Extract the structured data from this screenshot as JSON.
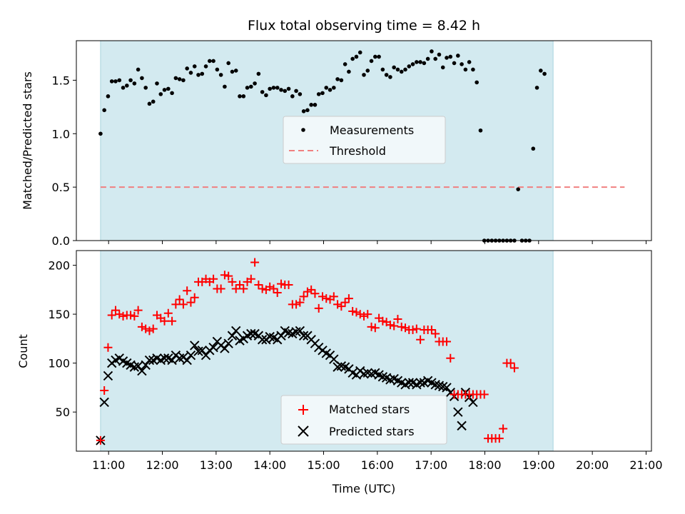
{
  "chart_data": {
    "type": "scatter",
    "title": "Flux total observing time = 8.42 h",
    "xlabel": "Time (UTC)",
    "x_unit": "hours (UTC)",
    "xlim": [
      10.4,
      21.1
    ],
    "x_ticks": [
      {
        "v": 11,
        "label": "11:00"
      },
      {
        "v": 12,
        "label": "12:00"
      },
      {
        "v": 13,
        "label": "13:00"
      },
      {
        "v": 14,
        "label": "14:00"
      },
      {
        "v": 15,
        "label": "15:00"
      },
      {
        "v": 16,
        "label": "16:00"
      },
      {
        "v": 17,
        "label": "17:00"
      },
      {
        "v": 18,
        "label": "18:00"
      },
      {
        "v": 19,
        "label": "19:00"
      },
      {
        "v": 20,
        "label": "20:00"
      },
      {
        "v": 21,
        "label": "21:00"
      }
    ],
    "observing_window": [
      10.85,
      19.27
    ],
    "window_color": "#d3eaf0",
    "top": {
      "ylabel": "Matched/Predicted stars",
      "ylim": [
        0,
        1.87
      ],
      "y_ticks": [
        {
          "v": 0.0,
          "label": "0.0"
        },
        {
          "v": 0.5,
          "label": "0.5"
        },
        {
          "v": 1.0,
          "label": "1.0"
        },
        {
          "v": 1.5,
          "label": "1.5"
        }
      ],
      "threshold": {
        "value": 0.5,
        "x_range": [
          10.85,
          20.6
        ],
        "color": "#f08080"
      },
      "legend": {
        "placement": "center",
        "items": [
          {
            "label": "Measurements",
            "marker": "dot",
            "color": "#000000"
          },
          {
            "label": "Threshold",
            "marker": "dashed-line",
            "color": "#f08080"
          }
        ]
      },
      "measurements": [
        [
          10.85,
          1.0
        ],
        [
          10.92,
          1.22
        ],
        [
          10.99,
          1.35
        ],
        [
          11.06,
          1.49
        ],
        [
          11.13,
          1.49
        ],
        [
          11.2,
          1.5
        ],
        [
          11.27,
          1.43
        ],
        [
          11.34,
          1.45
        ],
        [
          11.41,
          1.5
        ],
        [
          11.48,
          1.47
        ],
        [
          11.55,
          1.6
        ],
        [
          11.62,
          1.52
        ],
        [
          11.69,
          1.43
        ],
        [
          11.76,
          1.28
        ],
        [
          11.83,
          1.3
        ],
        [
          11.9,
          1.47
        ],
        [
          11.97,
          1.37
        ],
        [
          12.04,
          1.41
        ],
        [
          12.11,
          1.42
        ],
        [
          12.18,
          1.38
        ],
        [
          12.25,
          1.52
        ],
        [
          12.32,
          1.51
        ],
        [
          12.39,
          1.5
        ],
        [
          12.46,
          1.61
        ],
        [
          12.53,
          1.57
        ],
        [
          12.6,
          1.63
        ],
        [
          12.67,
          1.55
        ],
        [
          12.74,
          1.56
        ],
        [
          12.81,
          1.63
        ],
        [
          12.88,
          1.68
        ],
        [
          12.95,
          1.68
        ],
        [
          13.02,
          1.6
        ],
        [
          13.09,
          1.55
        ],
        [
          13.16,
          1.44
        ],
        [
          13.23,
          1.66
        ],
        [
          13.3,
          1.58
        ],
        [
          13.37,
          1.59
        ],
        [
          13.44,
          1.35
        ],
        [
          13.51,
          1.35
        ],
        [
          13.58,
          1.43
        ],
        [
          13.65,
          1.44
        ],
        [
          13.72,
          1.47
        ],
        [
          13.79,
          1.56
        ],
        [
          13.86,
          1.39
        ],
        [
          13.93,
          1.36
        ],
        [
          14.0,
          1.42
        ],
        [
          14.07,
          1.43
        ],
        [
          14.14,
          1.43
        ],
        [
          14.21,
          1.41
        ],
        [
          14.28,
          1.4
        ],
        [
          14.35,
          1.42
        ],
        [
          14.42,
          1.35
        ],
        [
          14.49,
          1.4
        ],
        [
          14.56,
          1.37
        ],
        [
          14.63,
          1.21
        ],
        [
          14.7,
          1.22
        ],
        [
          14.77,
          1.27
        ],
        [
          14.84,
          1.27
        ],
        [
          14.91,
          1.37
        ],
        [
          14.98,
          1.38
        ],
        [
          15.05,
          1.43
        ],
        [
          15.12,
          1.41
        ],
        [
          15.19,
          1.43
        ],
        [
          15.26,
          1.51
        ],
        [
          15.33,
          1.5
        ],
        [
          15.4,
          1.65
        ],
        [
          15.47,
          1.58
        ],
        [
          15.54,
          1.7
        ],
        [
          15.61,
          1.72
        ],
        [
          15.68,
          1.76
        ],
        [
          15.75,
          1.55
        ],
        [
          15.82,
          1.59
        ],
        [
          15.89,
          1.68
        ],
        [
          15.96,
          1.72
        ],
        [
          16.03,
          1.72
        ],
        [
          16.1,
          1.6
        ],
        [
          16.17,
          1.55
        ],
        [
          16.24,
          1.53
        ],
        [
          16.31,
          1.62
        ],
        [
          16.38,
          1.6
        ],
        [
          16.45,
          1.58
        ],
        [
          16.52,
          1.6
        ],
        [
          16.59,
          1.63
        ],
        [
          16.66,
          1.65
        ],
        [
          16.73,
          1.67
        ],
        [
          16.8,
          1.67
        ],
        [
          16.87,
          1.66
        ],
        [
          16.94,
          1.7
        ],
        [
          17.01,
          1.77
        ],
        [
          17.08,
          1.7
        ],
        [
          17.15,
          1.74
        ],
        [
          17.22,
          1.62
        ],
        [
          17.29,
          1.71
        ],
        [
          17.36,
          1.72
        ],
        [
          17.43,
          1.66
        ],
        [
          17.5,
          1.73
        ],
        [
          17.57,
          1.65
        ],
        [
          17.64,
          1.6
        ],
        [
          17.71,
          1.67
        ],
        [
          17.78,
          1.6
        ],
        [
          17.85,
          1.48
        ],
        [
          17.92,
          1.03
        ],
        [
          17.99,
          0.0
        ],
        [
          18.06,
          0.0
        ],
        [
          18.13,
          0.0
        ],
        [
          18.2,
          0.0
        ],
        [
          18.27,
          0.0
        ],
        [
          18.34,
          0.0
        ],
        [
          18.41,
          0.0
        ],
        [
          18.48,
          0.0
        ],
        [
          18.55,
          0.0
        ],
        [
          18.62,
          0.48
        ],
        [
          18.69,
          0.0
        ],
        [
          18.76,
          0.0
        ],
        [
          18.83,
          0.0
        ],
        [
          18.9,
          0.86
        ],
        [
          18.97,
          1.43
        ],
        [
          19.04,
          1.59
        ],
        [
          19.11,
          1.56
        ]
      ]
    },
    "bottom": {
      "ylabel": "Count",
      "ylim": [
        10,
        215
      ],
      "y_ticks": [
        {
          "v": 50,
          "label": "50"
        },
        {
          "v": 100,
          "label": "100"
        },
        {
          "v": 150,
          "label": "150"
        },
        {
          "v": 200,
          "label": "200"
        }
      ],
      "legend": {
        "placement": "lower-center",
        "items": [
          {
            "label": "Matched stars",
            "marker": "plus",
            "color": "#ff0000"
          },
          {
            "label": "Predicted stars",
            "marker": "x",
            "color": "#000000"
          }
        ]
      },
      "matched": [
        [
          10.85,
          21
        ],
        [
          10.92,
          72
        ],
        [
          10.99,
          116
        ],
        [
          11.06,
          149
        ],
        [
          11.13,
          154
        ],
        [
          11.2,
          150
        ],
        [
          11.27,
          148
        ],
        [
          11.34,
          149
        ],
        [
          11.41,
          149
        ],
        [
          11.48,
          148
        ],
        [
          11.55,
          154
        ],
        [
          11.62,
          137
        ],
        [
          11.69,
          135
        ],
        [
          11.76,
          133
        ],
        [
          11.83,
          135
        ],
        [
          11.9,
          149
        ],
        [
          11.97,
          146
        ],
        [
          12.04,
          143
        ],
        [
          12.11,
          151
        ],
        [
          12.18,
          143
        ],
        [
          12.25,
          160
        ],
        [
          12.32,
          165
        ],
        [
          12.39,
          160
        ],
        [
          12.46,
          174
        ],
        [
          12.53,
          162
        ],
        [
          12.6,
          167
        ],
        [
          12.67,
          183
        ],
        [
          12.74,
          183
        ],
        [
          12.81,
          186
        ],
        [
          12.88,
          183
        ],
        [
          12.95,
          186
        ],
        [
          13.02,
          176
        ],
        [
          13.09,
          176
        ],
        [
          13.16,
          190
        ],
        [
          13.23,
          189
        ],
        [
          13.3,
          183
        ],
        [
          13.37,
          176
        ],
        [
          13.44,
          180
        ],
        [
          13.51,
          176
        ],
        [
          13.58,
          183
        ],
        [
          13.65,
          186
        ],
        [
          13.72,
          203
        ],
        [
          13.79,
          180
        ],
        [
          13.86,
          176
        ],
        [
          13.93,
          175
        ],
        [
          14.0,
          178
        ],
        [
          14.07,
          176
        ],
        [
          14.14,
          172
        ],
        [
          14.21,
          181
        ],
        [
          14.28,
          180
        ],
        [
          14.35,
          180
        ],
        [
          14.42,
          160
        ],
        [
          14.49,
          160
        ],
        [
          14.56,
          162
        ],
        [
          14.63,
          168
        ],
        [
          14.7,
          173
        ],
        [
          14.77,
          175
        ],
        [
          14.84,
          171
        ],
        [
          14.91,
          156
        ],
        [
          14.98,
          168
        ],
        [
          15.05,
          166
        ],
        [
          15.12,
          165
        ],
        [
          15.19,
          168
        ],
        [
          15.26,
          160
        ],
        [
          15.33,
          158
        ],
        [
          15.4,
          162
        ],
        [
          15.47,
          166
        ],
        [
          15.54,
          153
        ],
        [
          15.61,
          152
        ],
        [
          15.68,
          150
        ],
        [
          15.75,
          148
        ],
        [
          15.82,
          150
        ],
        [
          15.89,
          137
        ],
        [
          15.96,
          136
        ],
        [
          16.03,
          146
        ],
        [
          16.1,
          143
        ],
        [
          16.17,
          142
        ],
        [
          16.24,
          139
        ],
        [
          16.31,
          138
        ],
        [
          16.38,
          145
        ],
        [
          16.45,
          137
        ],
        [
          16.52,
          136
        ],
        [
          16.59,
          134
        ],
        [
          16.66,
          134
        ],
        [
          16.73,
          135
        ],
        [
          16.8,
          124
        ],
        [
          16.87,
          134
        ],
        [
          16.94,
          134
        ],
        [
          17.01,
          134
        ],
        [
          17.08,
          130
        ],
        [
          17.15,
          122
        ],
        [
          17.22,
          122
        ],
        [
          17.29,
          122
        ],
        [
          17.36,
          105
        ],
        [
          17.43,
          68
        ],
        [
          17.5,
          68
        ],
        [
          17.57,
          68
        ],
        [
          17.64,
          68
        ],
        [
          17.71,
          68
        ],
        [
          17.78,
          68
        ],
        [
          17.85,
          68
        ],
        [
          17.92,
          68
        ],
        [
          17.99,
          68
        ],
        [
          18.06,
          23
        ],
        [
          18.13,
          23
        ],
        [
          18.2,
          23
        ],
        [
          18.27,
          23
        ],
        [
          18.34,
          33
        ],
        [
          18.41,
          100
        ],
        [
          18.48,
          100
        ],
        [
          18.55,
          95
        ]
      ],
      "predicted": [
        [
          10.85,
          21
        ],
        [
          10.92,
          60
        ],
        [
          10.99,
          87
        ],
        [
          11.06,
          100
        ],
        [
          11.13,
          103
        ],
        [
          11.2,
          105
        ],
        [
          11.27,
          102
        ],
        [
          11.34,
          100
        ],
        [
          11.41,
          98
        ],
        [
          11.48,
          96
        ],
        [
          11.55,
          97
        ],
        [
          11.62,
          92
        ],
        [
          11.69,
          98
        ],
        [
          11.76,
          103
        ],
        [
          11.83,
          103
        ],
        [
          11.9,
          105
        ],
        [
          11.97,
          103
        ],
        [
          12.04,
          105
        ],
        [
          12.11,
          105
        ],
        [
          12.18,
          103
        ],
        [
          12.25,
          108
        ],
        [
          12.32,
          105
        ],
        [
          12.39,
          106
        ],
        [
          12.46,
          103
        ],
        [
          12.53,
          108
        ],
        [
          12.6,
          118
        ],
        [
          12.67,
          112
        ],
        [
          12.74,
          113
        ],
        [
          12.81,
          108
        ],
        [
          12.88,
          113
        ],
        [
          12.95,
          116
        ],
        [
          13.02,
          122
        ],
        [
          13.09,
          118
        ],
        [
          13.16,
          115
        ],
        [
          13.23,
          120
        ],
        [
          13.3,
          128
        ],
        [
          13.37,
          133
        ],
        [
          13.44,
          123
        ],
        [
          13.51,
          125
        ],
        [
          13.58,
          128
        ],
        [
          13.65,
          130
        ],
        [
          13.72,
          130
        ],
        [
          13.79,
          128
        ],
        [
          13.86,
          124
        ],
        [
          13.93,
          124
        ],
        [
          14.0,
          127
        ],
        [
          14.07,
          126
        ],
        [
          14.14,
          124
        ],
        [
          14.21,
          128
        ],
        [
          14.28,
          133
        ],
        [
          14.35,
          131
        ],
        [
          14.42,
          130
        ],
        [
          14.49,
          132
        ],
        [
          14.56,
          133
        ],
        [
          14.63,
          128
        ],
        [
          14.7,
          128
        ],
        [
          14.77,
          124
        ],
        [
          14.84,
          120
        ],
        [
          14.91,
          116
        ],
        [
          14.98,
          113
        ],
        [
          15.05,
          110
        ],
        [
          15.12,
          108
        ],
        [
          15.19,
          104
        ],
        [
          15.26,
          96
        ],
        [
          15.33,
          97
        ],
        [
          15.4,
          96
        ],
        [
          15.47,
          94
        ],
        [
          15.54,
          90
        ],
        [
          15.61,
          88
        ],
        [
          15.68,
          92
        ],
        [
          15.75,
          89
        ],
        [
          15.82,
          90
        ],
        [
          15.89,
          89
        ],
        [
          15.96,
          90
        ],
        [
          16.03,
          88
        ],
        [
          16.1,
          86
        ],
        [
          16.17,
          85
        ],
        [
          16.24,
          83
        ],
        [
          16.31,
          84
        ],
        [
          16.38,
          82
        ],
        [
          16.45,
          80
        ],
        [
          16.52,
          78
        ],
        [
          16.59,
          80
        ],
        [
          16.66,
          80
        ],
        [
          16.73,
          78
        ],
        [
          16.8,
          80
        ],
        [
          16.87,
          80
        ],
        [
          16.94,
          82
        ],
        [
          17.01,
          80
        ],
        [
          17.08,
          78
        ],
        [
          17.15,
          77
        ],
        [
          17.22,
          76
        ],
        [
          17.29,
          75
        ],
        [
          17.36,
          70
        ],
        [
          17.43,
          66
        ],
        [
          17.5,
          50
        ],
        [
          17.57,
          36
        ],
        [
          17.64,
          70
        ],
        [
          17.71,
          65
        ],
        [
          17.78,
          60
        ]
      ]
    }
  }
}
